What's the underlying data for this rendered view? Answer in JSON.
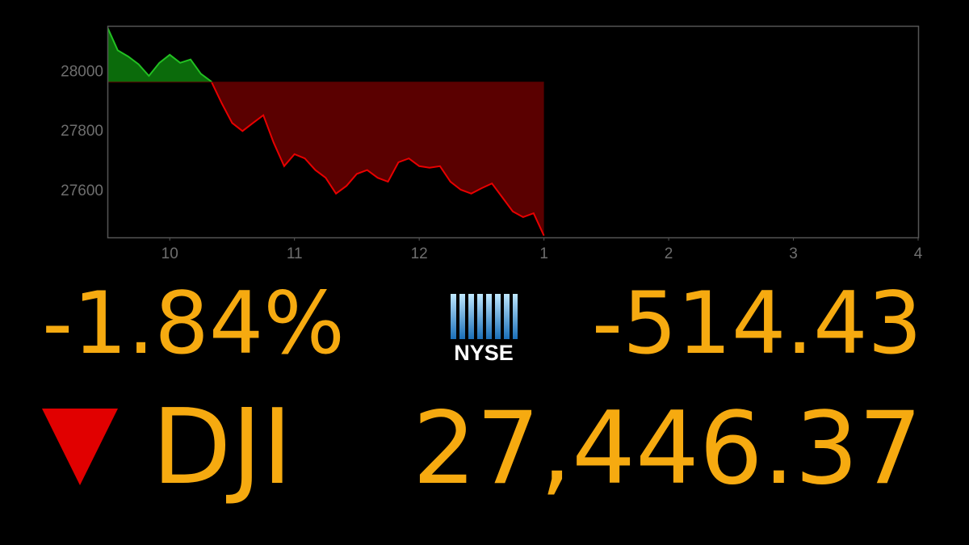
{
  "chart_data": {
    "type": "line",
    "x": [
      9.5,
      9.583,
      9.667,
      9.75,
      9.833,
      9.917,
      10.0,
      10.083,
      10.167,
      10.25,
      10.333,
      10.417,
      10.5,
      10.583,
      10.667,
      10.75,
      10.833,
      10.917,
      11.0,
      11.083,
      11.167,
      11.25,
      11.333,
      11.417,
      11.5,
      11.583,
      11.667,
      11.75,
      11.833,
      11.917,
      12.0,
      12.083,
      12.167,
      12.25,
      12.333,
      12.417,
      12.5,
      12.583,
      12.667,
      12.75,
      12.833,
      12.917,
      13.0
    ],
    "series": [
      {
        "values": [
          28145,
          28068,
          28047,
          28021,
          27982,
          28026,
          28053,
          28026,
          28037,
          27989,
          27963,
          27890,
          27824,
          27797,
          27824,
          27850,
          27758,
          27679,
          27719,
          27705,
          27666,
          27640,
          27587,
          27613,
          27653,
          27666,
          27640,
          27627,
          27692,
          27705,
          27679,
          27674,
          27679,
          27627,
          27600,
          27587,
          27605,
          27621,
          27574,
          27527,
          27508,
          27521,
          27446
        ]
      }
    ],
    "previous_close": 27961,
    "up_color": "#22c022",
    "down_color": "#e80000",
    "up_fill": "#0b6b0b",
    "down_fill": "#5a0000",
    "xlim": [
      9.5,
      16
    ],
    "xticks": [
      10,
      11,
      12,
      {
        "value": 13,
        "label": "1"
      },
      {
        "value": 14,
        "label": "2"
      },
      {
        "value": 15,
        "label": "3"
      },
      {
        "value": 16,
        "label": "4"
      }
    ],
    "ylim": [
      27440,
      28150
    ],
    "yticks": [
      27600,
      27800,
      28000
    ]
  },
  "ticker": {
    "percent_change": "-1.84%",
    "exchange": "NYSE",
    "point_change": "-514.43",
    "symbol": "DJI",
    "price": "27,446.37"
  }
}
